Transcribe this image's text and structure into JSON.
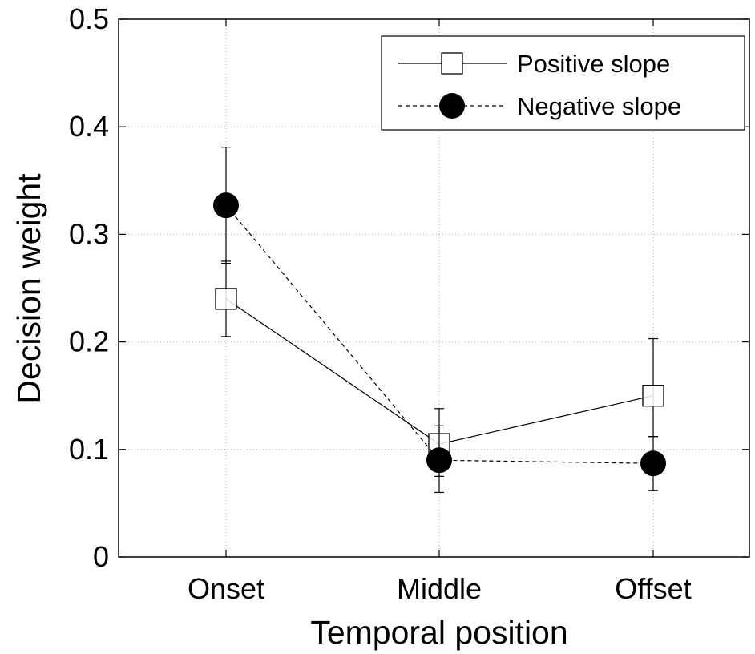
{
  "chart_data": {
    "type": "line",
    "categories": [
      "Onset",
      "Middle",
      "Offset"
    ],
    "xlabel": "Temporal position",
    "ylabel": "Decision weight",
    "ylim": [
      0,
      0.5
    ],
    "yticks": [
      "0",
      "0.1",
      "0.2",
      "0.3",
      "0.4",
      "0.5"
    ],
    "grid": true,
    "legend_position": "top-right",
    "series": [
      {
        "name": "Positive slope",
        "marker": "open-square",
        "linestyle": "solid",
        "values": [
          0.24,
          0.105,
          0.15
        ],
        "err_low": [
          0.205,
          0.075,
          0.112
        ],
        "err_high": [
          0.275,
          0.138,
          0.203
        ]
      },
      {
        "name": "Negative slope",
        "marker": "filled-circle",
        "linestyle": "dashed",
        "values": [
          0.327,
          0.09,
          0.087
        ],
        "err_low": [
          0.273,
          0.06,
          0.062
        ],
        "err_high": [
          0.381,
          0.122,
          0.112
        ]
      }
    ]
  }
}
